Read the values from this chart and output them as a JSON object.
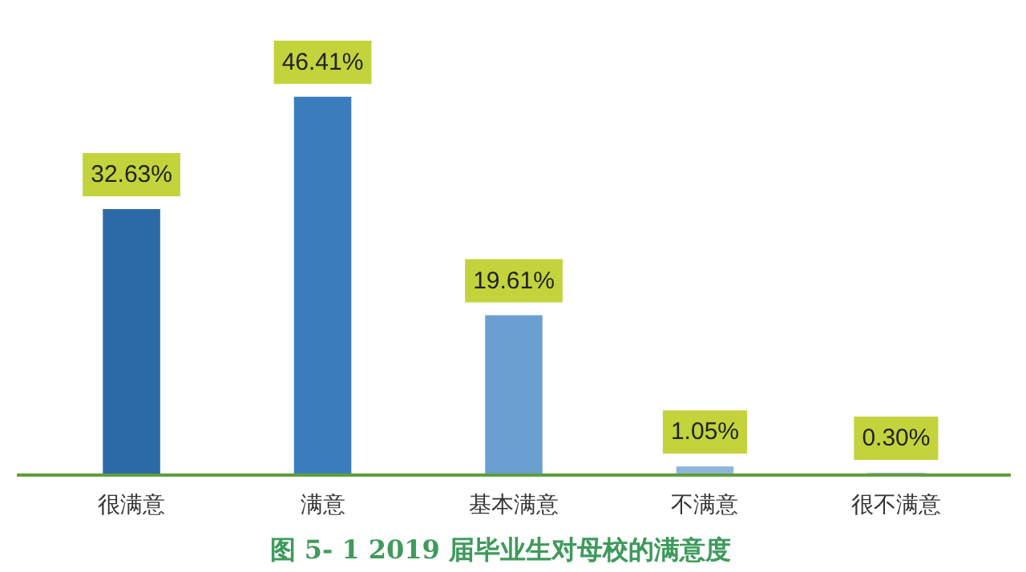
{
  "chart_data": {
    "type": "bar",
    "title": "图 5- 1    2019 届毕业生对母校的满意度",
    "categories": [
      "很满意",
      "满意",
      "基本满意",
      "不满意",
      "很不满意"
    ],
    "values": [
      32.63,
      46.41,
      19.61,
      1.05,
      0.3
    ],
    "colors": [
      "#2b6aa6",
      "#3a7dbd",
      "#6b9fd1",
      "#8fb5dc",
      "#a9c6e4"
    ],
    "value_labels": [
      "32.63%",
      "46.41%",
      "19.61%",
      "1.05%",
      "0.30%"
    ]
  }
}
